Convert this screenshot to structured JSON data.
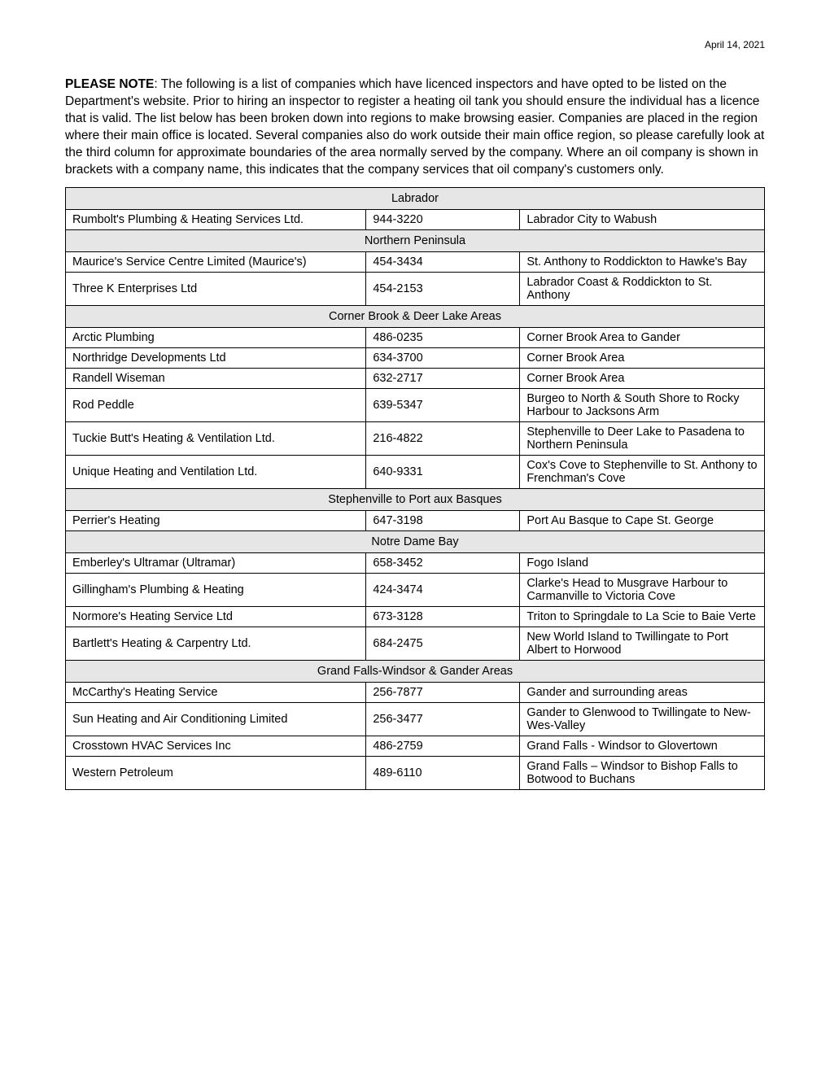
{
  "date": "April 14, 2021",
  "intro_lead": "PLEASE NOTE",
  "intro_body": ": The following is a list of companies which have licenced inspectors and have opted to be listed on the Department's website.   Prior to hiring an inspector to register a heating oil tank you should ensure the individual has a licence that is valid.   The list below has been broken down into regions to make browsing easier.   Companies are placed in the region where their main office is located.   Several companies also do work outside their main office region, so please carefully look at the third column for approximate boundaries of the area normally served by the company.   Where an oil company is shown in brackets with a company name, this indicates that the company services that oil company's customers only.",
  "colors": {
    "region_bg": "#e6e6e6",
    "border": "#000000",
    "text": "#000000",
    "page_bg": "#ffffff"
  },
  "regions": [
    {
      "name": "Labrador",
      "rows": [
        {
          "company": "Rumbolt's Plumbing & Heating Services Ltd.",
          "phone": "944-3220",
          "area": "Labrador City to Wabush"
        }
      ]
    },
    {
      "name": "Northern Peninsula",
      "rows": [
        {
          "company": "Maurice's Service Centre Limited (Maurice's)",
          "phone": "454-3434",
          "area": "St. Anthony to Roddickton to Hawke's Bay"
        },
        {
          "company": "Three K Enterprises Ltd",
          "phone": "454-2153",
          "area": "Labrador Coast & Roddickton to St. Anthony"
        }
      ]
    },
    {
      "name": "Corner Brook & Deer Lake Areas",
      "rows": [
        {
          "company": "Arctic Plumbing",
          "phone": "486-0235",
          "area": "Corner Brook Area to Gander"
        },
        {
          "company": "Northridge Developments Ltd",
          "phone": "634-3700",
          "area": "Corner Brook Area"
        },
        {
          "company": "Randell Wiseman",
          "phone": "632-2717",
          "area": "Corner Brook Area"
        },
        {
          "company": "Rod Peddle",
          "phone": "639-5347",
          "area": "Burgeo to North & South Shore to Rocky Harbour to Jacksons Arm"
        },
        {
          "company": "Tuckie Butt's Heating & Ventilation Ltd.",
          "phone": "216-4822",
          "area": "Stephenville to Deer Lake to Pasadena to Northern Peninsula"
        },
        {
          "company": "Unique Heating and Ventilation Ltd.",
          "phone": "640-9331",
          "area": "Cox's Cove to Stephenville to St. Anthony to Frenchman's Cove"
        }
      ]
    },
    {
      "name": "Stephenville to Port aux Basques",
      "rows": [
        {
          "company": "Perrier's Heating",
          "phone": "647-3198",
          "area": "Port Au Basque to Cape St. George"
        }
      ]
    },
    {
      "name": "Notre Dame Bay",
      "rows": [
        {
          "company": "Emberley's Ultramar (Ultramar)",
          "phone": "658-3452",
          "area": "Fogo Island"
        },
        {
          "company": "Gillingham's Plumbing & Heating",
          "phone": "424-3474",
          "area": "Clarke's Head to Musgrave Harbour to Carmanville to Victoria Cove"
        },
        {
          "company": "Normore's Heating Service Ltd",
          "phone": "673-3128",
          "area": "Triton to Springdale to La Scie to Baie Verte"
        },
        {
          "company": "Bartlett's Heating & Carpentry Ltd.",
          "phone": "684-2475",
          "area": "New World Island to Twillingate to Port Albert to Horwood"
        }
      ]
    },
    {
      "name": "Grand Falls-Windsor & Gander Areas",
      "rows": [
        {
          "company": "McCarthy's Heating Service",
          "phone": "256-7877",
          "area": "Gander and surrounding areas"
        },
        {
          "company": "Sun Heating and Air Conditioning Limited",
          "phone": "256-3477",
          "area": "Gander to Glenwood to Twillingate to New-Wes-Valley"
        },
        {
          "company": "Crosstown HVAC Services Inc",
          "phone": "486-2759",
          "area": "Grand Falls - Windsor to Glovertown"
        },
        {
          "company": "Western Petroleum",
          "phone": "489-6110",
          "area": "Grand Falls – Windsor to Bishop Falls to Botwood to Buchans"
        }
      ]
    }
  ]
}
